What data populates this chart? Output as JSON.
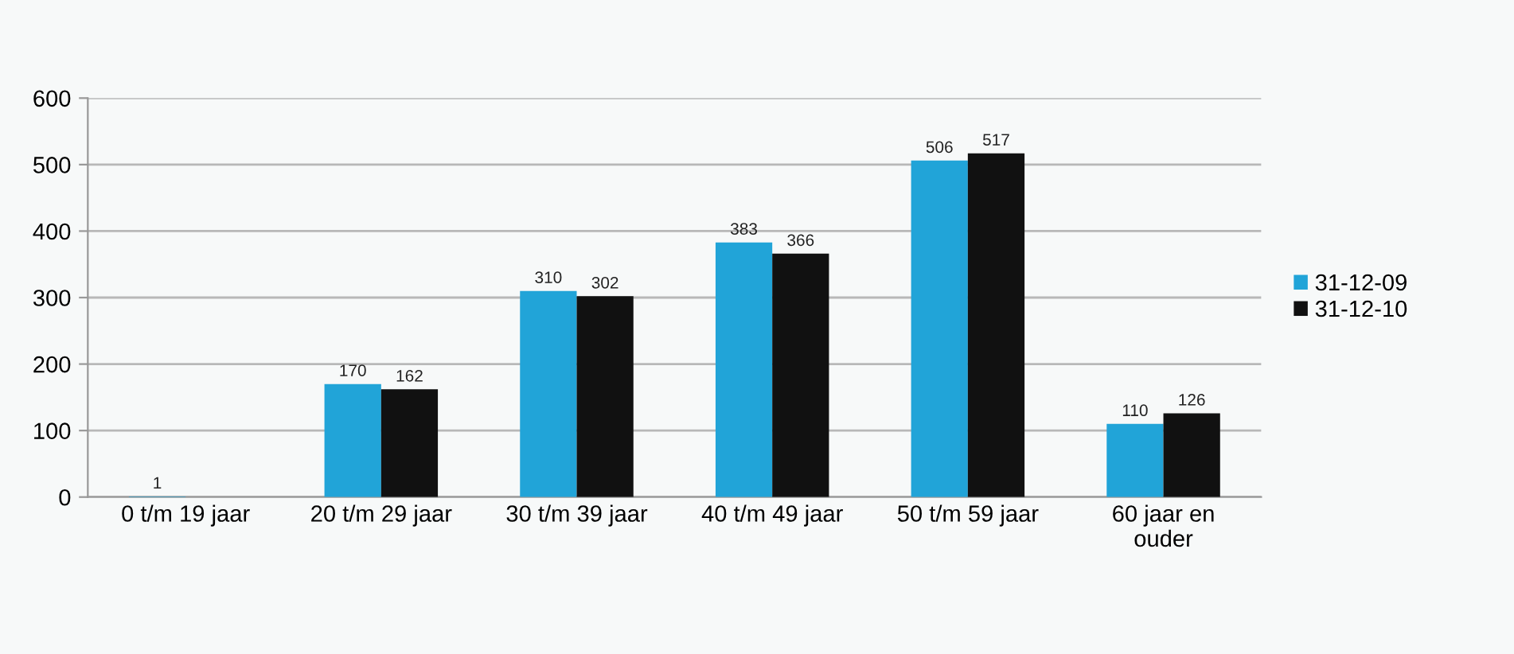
{
  "chart_data": {
    "type": "bar",
    "categories": [
      "0 t/m 19 jaar",
      "20 t/m 29 jaar",
      "30 t/m 39 jaar",
      "40 t/m 49 jaar",
      "50 t/m 59 jaar",
      "60 jaar en\nouder"
    ],
    "series": [
      {
        "name": "31-12-09",
        "color": "#21a4d8",
        "values": [
          1,
          170,
          310,
          383,
          506,
          110
        ]
      },
      {
        "name": "31-12-10",
        "color": "#111111",
        "values": [
          null,
          162,
          302,
          366,
          517,
          126
        ]
      }
    ],
    "ylim": [
      0,
      600
    ],
    "yticks": [
      0,
      100,
      200,
      300,
      400,
      500,
      600
    ],
    "grid": "y",
    "legend": "right",
    "data_labels": true
  }
}
